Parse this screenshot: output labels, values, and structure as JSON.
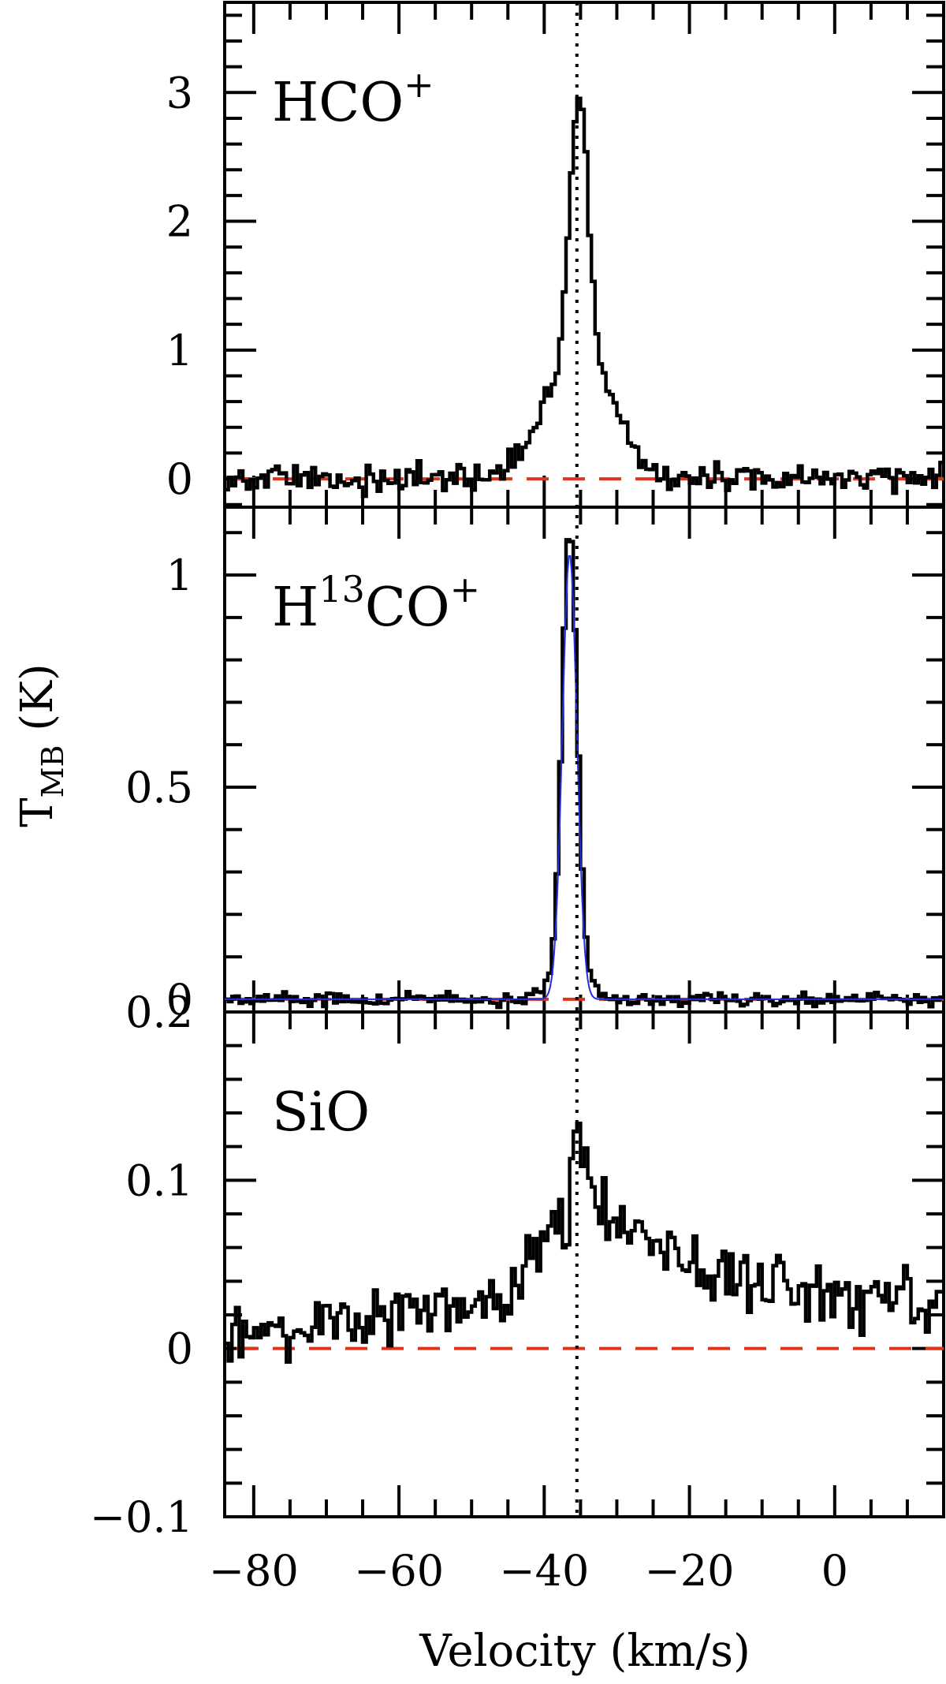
{
  "chart_data": {
    "type": "line",
    "xlabel": "Velocity (km/s)",
    "ylabel": "T",
    "ylabel_subscript": "MB",
    "ylabel_unit": " (K)",
    "xlim": [
      -84,
      15
    ],
    "x_ticks": [
      -80,
      -60,
      -40,
      -20,
      0
    ],
    "x_tick_labels": [
      "−80",
      "−60",
      "−40",
      "−20",
      "0"
    ],
    "systemic_velocity": -35.5,
    "colors": {
      "spectrum": "#000000",
      "baseline": "#e0341a",
      "fit": "#2030e0"
    },
    "panels": [
      {
        "species": "HCO",
        "superscript_pre": "",
        "superscript_post": "+",
        "ylim": [
          -0.22,
          3.7
        ],
        "y_ticks": [
          0,
          1,
          2,
          3
        ],
        "y_tick_labels": [
          "0",
          "1",
          "2",
          "3"
        ],
        "profile": {
          "kind": "peak",
          "amplitude": 2.05,
          "center": -35.2,
          "sigma": 1.3,
          "wing_amplitude": 0.95,
          "wing_sigma": 4.6,
          "noise": 0.07
        }
      },
      {
        "species": "CO",
        "prefix": "H",
        "superscript_pre": "13",
        "superscript_post": "+",
        "ylim": [
          -0.03,
          1.16
        ],
        "y_ticks": [
          0,
          0.5,
          1
        ],
        "y_tick_labels": [
          "0",
          "0.5",
          "1"
        ],
        "gaussian_fit": {
          "amplitude": 1.05,
          "center": -36.5,
          "sigma": 1.0
        },
        "profile": {
          "kind": "narrow",
          "amplitude": 1.05,
          "center": -36.5,
          "sigma": 1.05,
          "wing_amplitude": 0.06,
          "wing_sigma": 2.6,
          "noise": 0.01
        }
      },
      {
        "species": "SiO",
        "superscript_pre": "",
        "superscript_post": "",
        "ylim": [
          -0.1,
          0.2
        ],
        "y_ticks": [
          -0.1,
          0,
          0.1,
          0.2
        ],
        "y_tick_labels": [
          "−0.1",
          "0",
          "0.1",
          "0.2"
        ],
        "profile": {
          "kind": "broad",
          "peak": 0.12,
          "center": -36.5,
          "noise": 0.012
        }
      }
    ]
  }
}
